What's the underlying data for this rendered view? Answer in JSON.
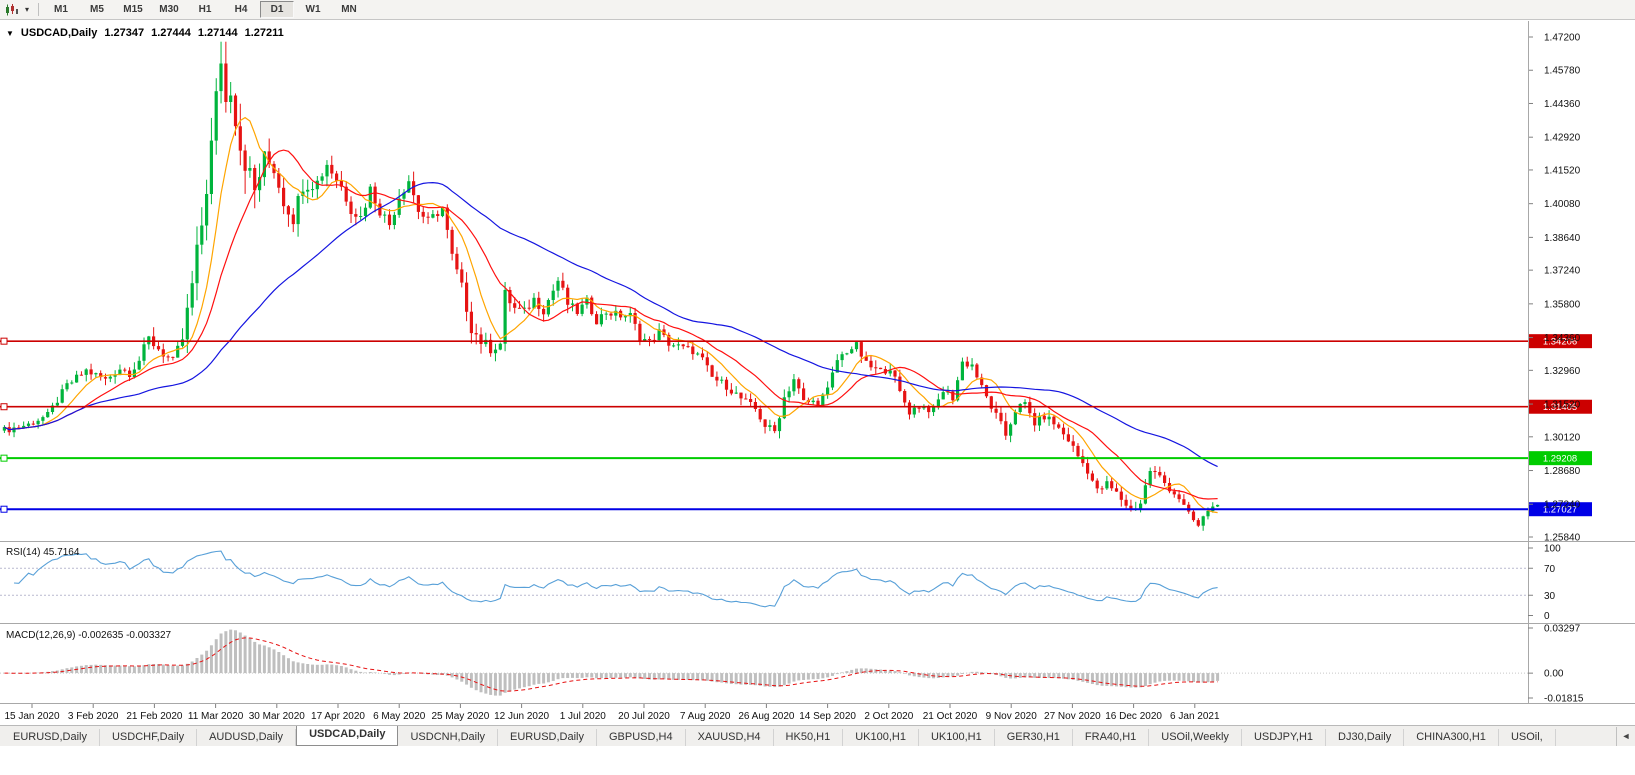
{
  "toolbar": {
    "caret_glyph": "▾",
    "timeframes": [
      {
        "label": "M1",
        "active": false
      },
      {
        "label": "M5",
        "active": false
      },
      {
        "label": "M15",
        "active": false
      },
      {
        "label": "M30",
        "active": false
      },
      {
        "label": "H1",
        "active": false
      },
      {
        "label": "H4",
        "active": false
      },
      {
        "label": "D1",
        "active": true
      },
      {
        "label": "W1",
        "active": false
      },
      {
        "label": "MN",
        "active": false
      }
    ]
  },
  "quote_bar": {
    "marker": "▼",
    "symbol": "USDCAD,Daily",
    "open": "1.27347",
    "high": "1.27444",
    "low": "1.27144",
    "close": "1.27211"
  },
  "chart_data": {
    "type": "candlestick",
    "symbol": "USDCAD",
    "timeframe": "Daily",
    "up_color": "#00b43c",
    "down_color": "#e61313",
    "candles_count": 253,
    "close_anchors": [
      [
        0,
        1.304,
        0.0045
      ],
      [
        5,
        1.3065,
        0.004
      ],
      [
        9,
        1.3105,
        0.004
      ],
      [
        13,
        1.323,
        0.005
      ],
      [
        17,
        1.3295,
        0.005
      ],
      [
        21,
        1.3255,
        0.005
      ],
      [
        24,
        1.3305,
        0.005
      ],
      [
        26,
        1.3285,
        0.005
      ],
      [
        28,
        1.334,
        0.006
      ],
      [
        30,
        1.343,
        0.007
      ],
      [
        33,
        1.337,
        0.007
      ],
      [
        35,
        1.333,
        0.006
      ],
      [
        37,
        1.343,
        0.008
      ],
      [
        39,
        1.366,
        0.012
      ],
      [
        41,
        1.392,
        0.016
      ],
      [
        43,
        1.425,
        0.02
      ],
      [
        45,
        1.464,
        0.022
      ],
      [
        46,
        1.444,
        0.022
      ],
      [
        47,
        1.452,
        0.02
      ],
      [
        49,
        1.426,
        0.018
      ],
      [
        52,
        1.406,
        0.014
      ],
      [
        54,
        1.42,
        0.012
      ],
      [
        56,
        1.416,
        0.011
      ],
      [
        58,
        1.402,
        0.01
      ],
      [
        60,
        1.395,
        0.01
      ],
      [
        62,
        1.409,
        0.009
      ],
      [
        65,
        1.41,
        0.009
      ],
      [
        67,
        1.418,
        0.008
      ],
      [
        70,
        1.408,
        0.008
      ],
      [
        72,
        1.399,
        0.008
      ],
      [
        74,
        1.395,
        0.008
      ],
      [
        76,
        1.407,
        0.008
      ],
      [
        78,
        1.398,
        0.007
      ],
      [
        80,
        1.392,
        0.007
      ],
      [
        82,
        1.404,
        0.007
      ],
      [
        84,
        1.411,
        0.007
      ],
      [
        86,
        1.398,
        0.007
      ],
      [
        88,
        1.393,
        0.006
      ],
      [
        91,
        1.399,
        0.006
      ],
      [
        93,
        1.378,
        0.007
      ],
      [
        95,
        1.365,
        0.007
      ],
      [
        97,
        1.348,
        0.008
      ],
      [
        99,
        1.342,
        0.007
      ],
      [
        101,
        1.339,
        0.007
      ],
      [
        103,
        1.341,
        0.006
      ],
      [
        104,
        1.362,
        0.007
      ],
      [
        106,
        1.356,
        0.006
      ],
      [
        108,
        1.3545,
        0.006
      ],
      [
        110,
        1.36,
        0.006
      ],
      [
        112,
        1.3555,
        0.006
      ],
      [
        115,
        1.368,
        0.007
      ],
      [
        117,
        1.358,
        0.006
      ],
      [
        119,
        1.3545,
        0.005
      ],
      [
        121,
        1.359,
        0.005
      ],
      [
        123,
        1.351,
        0.005
      ],
      [
        125,
        1.3545,
        0.005
      ],
      [
        128,
        1.353,
        0.005
      ],
      [
        130,
        1.353,
        0.005
      ],
      [
        132,
        1.344,
        0.005
      ],
      [
        134,
        1.3415,
        0.005
      ],
      [
        136,
        1.346,
        0.005
      ],
      [
        138,
        1.3412,
        0.005
      ],
      [
        141,
        1.339,
        0.005
      ],
      [
        143,
        1.338,
        0.005
      ],
      [
        145,
        1.334,
        0.005
      ],
      [
        147,
        1.3265,
        0.005
      ],
      [
        150,
        1.323,
        0.005
      ],
      [
        153,
        1.3175,
        0.005
      ],
      [
        156,
        1.313,
        0.005
      ],
      [
        158,
        1.306,
        0.005
      ],
      [
        160,
        1.3035,
        0.005
      ],
      [
        162,
        1.318,
        0.006
      ],
      [
        164,
        1.326,
        0.006
      ],
      [
        166,
        1.316,
        0.005
      ],
      [
        169,
        1.316,
        0.005
      ],
      [
        171,
        1.321,
        0.005
      ],
      [
        173,
        1.334,
        0.006
      ],
      [
        175,
        1.338,
        0.005
      ],
      [
        177,
        1.34,
        0.005
      ],
      [
        179,
        1.332,
        0.005
      ],
      [
        182,
        1.329,
        0.005
      ],
      [
        184,
        1.331,
        0.005
      ],
      [
        186,
        1.32,
        0.005
      ],
      [
        188,
        1.312,
        0.005
      ],
      [
        190,
        1.3145,
        0.005
      ],
      [
        193,
        1.3125,
        0.005
      ],
      [
        195,
        1.321,
        0.005
      ],
      [
        197,
        1.318,
        0.005
      ],
      [
        199,
        1.333,
        0.006
      ],
      [
        201,
        1.332,
        0.005
      ],
      [
        203,
        1.322,
        0.005
      ],
      [
        205,
        1.314,
        0.005
      ],
      [
        208,
        1.302,
        0.006
      ],
      [
        210,
        1.313,
        0.006
      ],
      [
        212,
        1.315,
        0.005
      ],
      [
        214,
        1.307,
        0.005
      ],
      [
        216,
        1.31,
        0.005
      ],
      [
        218,
        1.307,
        0.005
      ],
      [
        221,
        1.3,
        0.005
      ],
      [
        223,
        1.293,
        0.005
      ],
      [
        225,
        1.287,
        0.005
      ],
      [
        227,
        1.278,
        0.005
      ],
      [
        229,
        1.281,
        0.005
      ],
      [
        231,
        1.277,
        0.005
      ],
      [
        234,
        1.27,
        0.005
      ],
      [
        236,
        1.273,
        0.005
      ],
      [
        238,
        1.287,
        0.006
      ],
      [
        240,
        1.284,
        0.005
      ],
      [
        242,
        1.279,
        0.004
      ],
      [
        244,
        1.275,
        0.004
      ],
      [
        246,
        1.268,
        0.004
      ],
      [
        248,
        1.263,
        0.004
      ],
      [
        250,
        1.27,
        0.004
      ],
      [
        252,
        1.27211,
        0.003
      ]
    ],
    "moving_averages": [
      {
        "period": 8,
        "color": "#ffa500"
      },
      {
        "period": 17,
        "color": "#ff1010"
      },
      {
        "period": 48,
        "color": "#1515e0"
      }
    ],
    "h_lines": [
      {
        "value": 1.34206,
        "label": "1.34206",
        "color": "#cc0000",
        "width": 1.6
      },
      {
        "value": 1.31405,
        "label": "1.31405",
        "color": "#cc0000",
        "width": 1.6
      },
      {
        "value": 1.29208,
        "label": "1.29208",
        "color": "#00cc00",
        "width": 2
      },
      {
        "value": 1.27027,
        "label": "1.27027",
        "color": "#0000e6",
        "width": 2
      }
    ],
    "price_axis": {
      "max": 1.472,
      "min": 1.2584,
      "labels": [
        "1.47200",
        "1.45780",
        "1.44360",
        "1.42920",
        "1.41520",
        "1.40080",
        "1.38640",
        "1.37240",
        "1.35800",
        "1.34360",
        "1.32960",
        "1.31520",
        "1.30120",
        "1.28680",
        "1.27240",
        "1.25840"
      ]
    },
    "date_axis": {
      "labels": [
        "15 Jan 2020",
        "3 Feb 2020",
        "21 Feb 2020",
        "11 Mar 2020",
        "30 Mar 2020",
        "17 Apr 2020",
        "6 May 2020",
        "25 May 2020",
        "12 Jun 2020",
        "1 Jul 2020",
        "20 Jul 2020",
        "7 Aug 2020",
        "26 Aug 2020",
        "14 Sep 2020",
        "2 Oct 2020",
        "21 Oct 2020",
        "9 Nov 2020",
        "27 Nov 2020",
        "16 Dec 2020",
        "6 Jan 2021"
      ]
    },
    "rsi": {
      "label": "RSI(14)",
      "value_label": "45.7164",
      "period": 14,
      "levels": [
        100,
        70,
        30,
        0
      ],
      "level_lines": [
        70,
        30
      ],
      "color": "#58a0d8",
      "range": [
        0,
        100
      ]
    },
    "macd": {
      "label": "MACD(12,26,9)",
      "value_label": "-0.002635 -0.003327",
      "fast": 12,
      "slow": 26,
      "signal": 9,
      "max": 0.03297,
      "min": -0.01815,
      "axis": [
        {
          "value": 0.03297,
          "label": "0.03297"
        },
        {
          "value": 0,
          "label": "0.00"
        },
        {
          "value": -0.01815,
          "label": "-0.01815"
        }
      ],
      "hist_color": "#bfbfbf",
      "signal_color": "#e61313"
    }
  },
  "bottom_tabs": {
    "scroll_left_glyph": "◄",
    "tabs": [
      {
        "label": "EURUSD,Daily",
        "active": false
      },
      {
        "label": "USDCHF,Daily",
        "active": false
      },
      {
        "label": "AUDUSD,Daily",
        "active": false
      },
      {
        "label": "USDCAD,Daily",
        "active": true
      },
      {
        "label": "USDCNH,Daily",
        "active": false
      },
      {
        "label": "EURUSD,Daily",
        "active": false
      },
      {
        "label": "GBPUSD,H4",
        "active": false
      },
      {
        "label": "XAUUSD,H4",
        "active": false
      },
      {
        "label": "HK50,H1",
        "active": false
      },
      {
        "label": "UK100,H1",
        "active": false
      },
      {
        "label": "UK100,H1",
        "active": false
      },
      {
        "label": "GER30,H1",
        "active": false
      },
      {
        "label": "FRA40,H1",
        "active": false
      },
      {
        "label": "USOil,Weekly",
        "active": false
      },
      {
        "label": "USDJPY,H1",
        "active": false
      },
      {
        "label": "DJ30,Daily",
        "active": false
      },
      {
        "label": "CHINA300,H1",
        "active": false
      },
      {
        "label": "USOil,",
        "active": false
      }
    ]
  }
}
